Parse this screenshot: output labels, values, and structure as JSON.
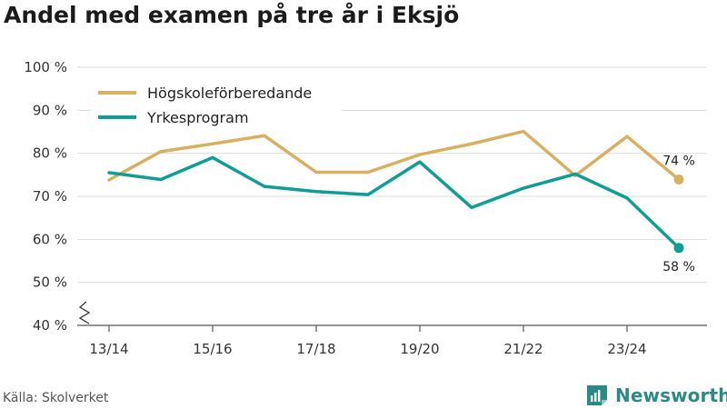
{
  "title": "Andel med examen på tre år i Eksjö",
  "source": "Källa: Skolverket",
  "brand": {
    "name": "Newsworthy",
    "icon": "bar-chart-document-icon"
  },
  "chart_data": {
    "type": "line",
    "title": "Andel med examen på tre år i Eksjö",
    "xlabel": "",
    "ylabel": "",
    "x": [
      "13/14",
      "14/15",
      "15/16",
      "16/17",
      "17/18",
      "18/19",
      "19/20",
      "20/21",
      "21/22",
      "22/23",
      "23/24",
      "24/25"
    ],
    "x_tick_labels": [
      "13/14",
      "15/16",
      "17/18",
      "19/20",
      "21/22",
      "23/24"
    ],
    "y_tick_labels": [
      "40 %",
      "50 %",
      "60 %",
      "70 %",
      "80 %",
      "90 %",
      "100 %"
    ],
    "ylim": [
      40,
      100
    ],
    "y_axis_break": true,
    "grid": true,
    "legend_position": "top-left",
    "series": [
      {
        "name": "Högskoleförberedande",
        "color": "#d8b061",
        "values": [
          73.8,
          80.4,
          82.2,
          84.1,
          75.6,
          75.6,
          79.7,
          82.2,
          85.1,
          74.8,
          83.9,
          73.9
        ],
        "end_label": "74 %"
      },
      {
        "name": "Yrkesprogram",
        "color": "#0e9e93",
        "values": [
          75.5,
          73.9,
          79.0,
          72.3,
          71.1,
          70.4,
          78.0,
          67.4,
          71.9,
          75.2,
          69.6,
          58.0
        ],
        "end_label": "58 %"
      }
    ]
  }
}
